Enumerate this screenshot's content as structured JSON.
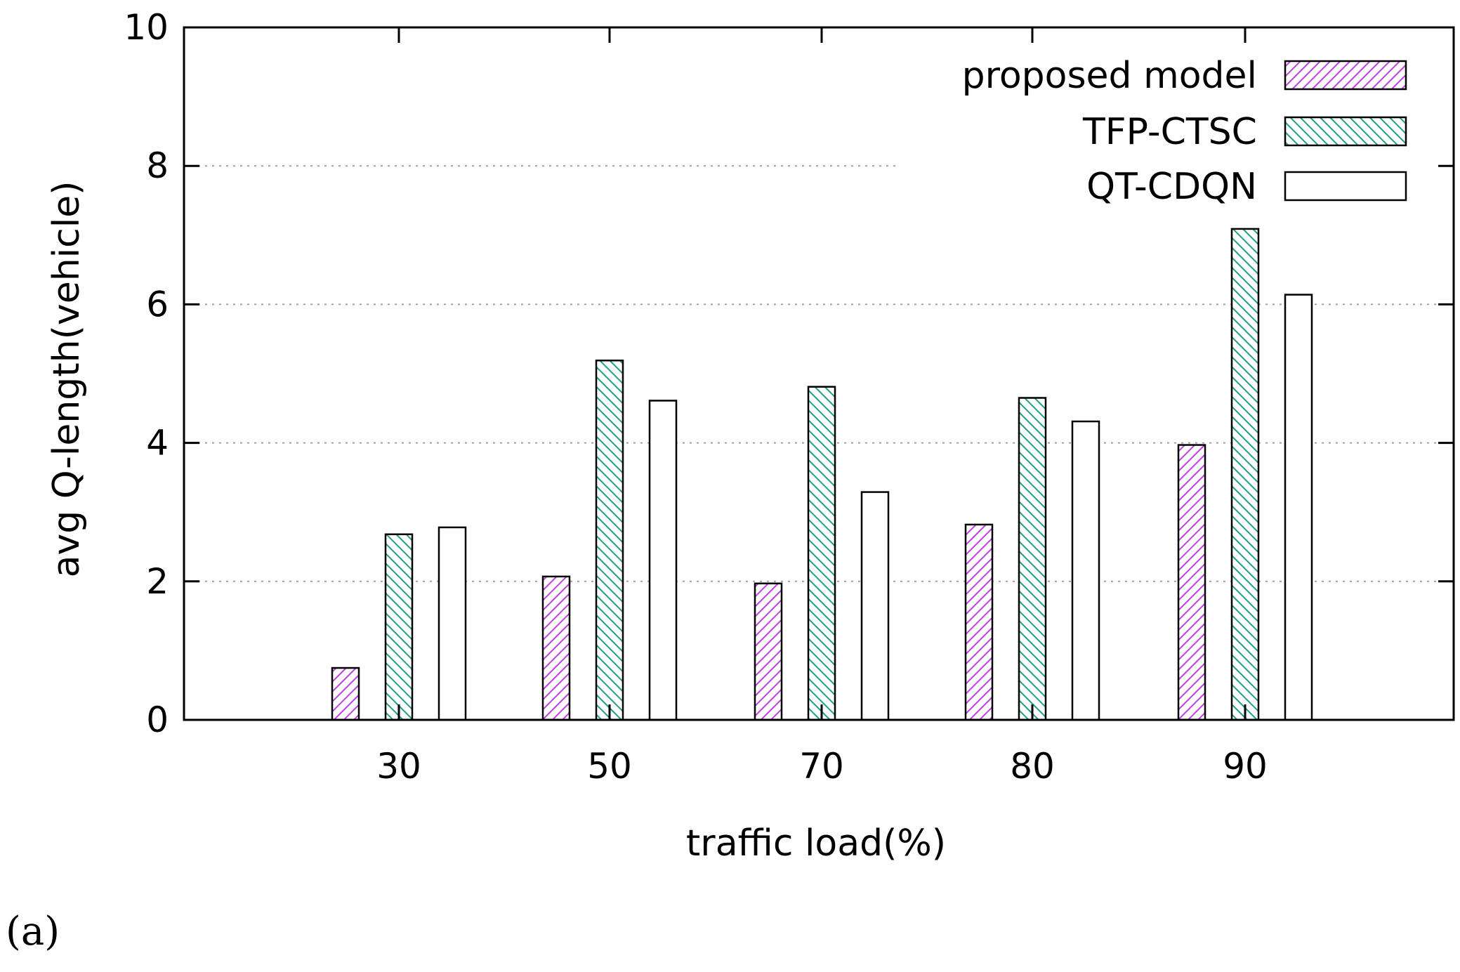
{
  "panel_label": "(a)",
  "colors": {
    "proposed": "#c040e0",
    "tfp": "#20a080",
    "qt": "#000000",
    "grid": "#a0a0a0"
  },
  "chart_data": {
    "type": "bar",
    "xlabel": "traffic load(%)",
    "ylabel": "avg Q-length(vehicle)",
    "ylim": [
      0,
      10
    ],
    "yticks": [
      "0",
      "2",
      "4",
      "6",
      "8",
      "10"
    ],
    "categories": [
      "30",
      "50",
      "70",
      "80",
      "90"
    ],
    "grid": "horizontal dotted",
    "legend_position": "top-right",
    "series": [
      {
        "name": "proposed model",
        "pattern": "hatch-purple",
        "values": [
          0.75,
          2.07,
          1.97,
          2.82,
          3.97
        ]
      },
      {
        "name": "TFP-CTSC",
        "pattern": "hatch-green",
        "values": [
          2.68,
          5.19,
          4.81,
          4.65,
          7.09
        ]
      },
      {
        "name": "QT-CDQN",
        "pattern": "empty",
        "values": [
          2.78,
          4.61,
          3.29,
          4.31,
          6.14
        ]
      }
    ]
  }
}
